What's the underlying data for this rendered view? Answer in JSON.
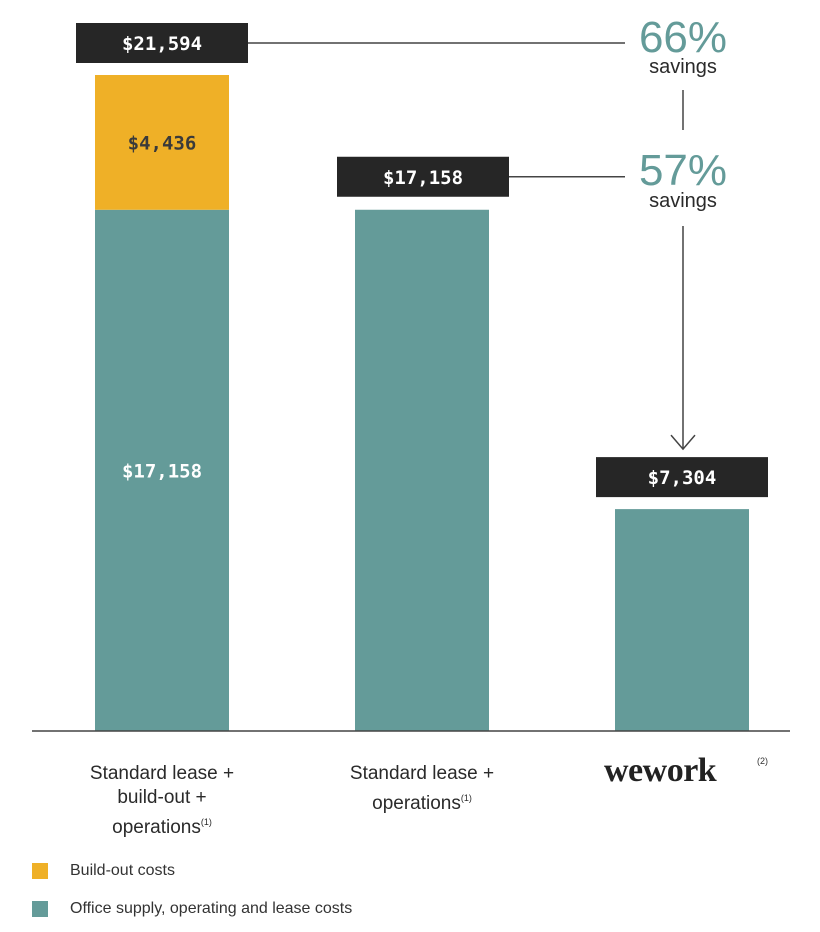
{
  "chart_data": {
    "type": "bar",
    "stacked": true,
    "categories": [
      "Standard lease + build-out + operations",
      "Standard lease + operations",
      "wework"
    ],
    "series": [
      {
        "name": "Office supply, operating and lease costs",
        "values": [
          17158,
          17158,
          7304
        ],
        "color": "#649b99"
      },
      {
        "name": "Build-out costs",
        "values": [
          4436,
          0,
          0
        ],
        "color": "#efb027"
      }
    ],
    "totals": [
      "$21,594",
      "$17,158",
      "$7,304"
    ],
    "segment_labels": {
      "build_out": "$4,436",
      "office": "$17,158"
    },
    "savings": [
      {
        "value": "66%",
        "label": "savings"
      },
      {
        "value": "57%",
        "label": "savings"
      }
    ],
    "ylim": [
      0,
      21594
    ],
    "grid": false,
    "legend_position": "bottom-left"
  },
  "labels": {
    "cat1_line1": "Standard lease +",
    "cat1_line2": "build-out +",
    "cat1_line3": "operations",
    "cat1_sup": "(1)",
    "cat2_line1": "Standard lease +",
    "cat2_line2": "operations",
    "cat2_sup": "(1)",
    "logo": "wework",
    "logo_sup": "(2)"
  },
  "legend": {
    "build_out": "Build-out costs",
    "office": "Office supply, operating and lease costs"
  },
  "colors": {
    "teal": "#649b99",
    "gold": "#efb027",
    "label_box": "#262626",
    "savings_text": "#649b99"
  }
}
